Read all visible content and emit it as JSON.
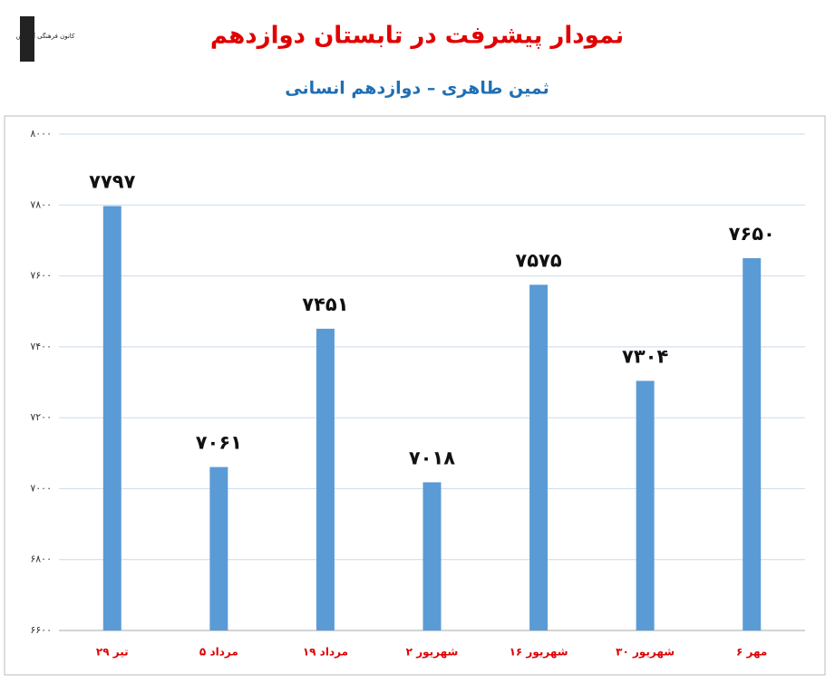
{
  "logo_text": "کانون فرهنگی آموزش",
  "chart_data": {
    "type": "bar",
    "title": "نمودار پیشرفت در تابستان دوازدهم",
    "subtitle": "ثمین طاهری – دوازدهم انسانی",
    "categories": [
      "۲۹ تیر",
      "۵ مرداد",
      "۱۹ مرداد",
      "۲ شهریور",
      "۱۶ شهریور",
      "۳۰ شهریور",
      "۶ مهر"
    ],
    "values": [
      7797,
      7061,
      7451,
      7018,
      7575,
      7304,
      7650
    ],
    "value_labels": [
      "۷۷۹۷",
      "۷۰۶۱",
      "۷۴۵۱",
      "۷۰۱۸",
      "۷۵۷۵",
      "۷۳۰۴",
      "۷۶۵۰"
    ],
    "color": "#5b9bd5",
    "ylim": [
      6600,
      8000
    ],
    "yticks": [
      {
        "value": 6600,
        "label": "۶۶۰۰"
      },
      {
        "value": 6800,
        "label": "۶۸۰۰"
      },
      {
        "value": 7000,
        "label": "۷۰۰۰"
      },
      {
        "value": 7200,
        "label": "۷۲۰۰"
      },
      {
        "value": 7400,
        "label": "۷۴۰۰"
      },
      {
        "value": 7600,
        "label": "۷۶۰۰"
      },
      {
        "value": 7800,
        "label": "۷۸۰۰"
      },
      {
        "value": 8000,
        "label": "۸۰۰۰"
      }
    ],
    "grid": true
  }
}
